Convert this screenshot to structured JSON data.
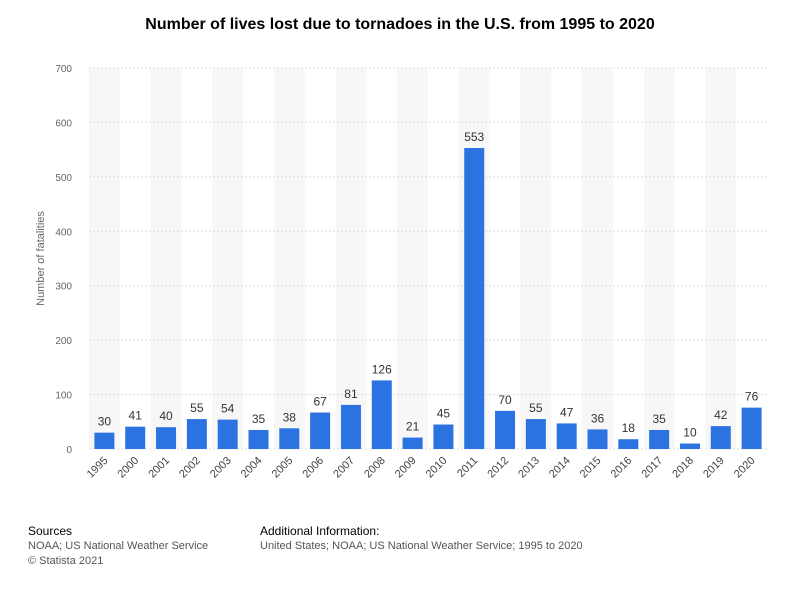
{
  "chart_data": {
    "type": "bar",
    "title": "Number of lives lost due to tornadoes in the U.S. from 1995 to 2020",
    "xlabel": "",
    "ylabel": "Number of fatalities",
    "ylim": [
      0,
      700
    ],
    "yticks": [
      0,
      100,
      200,
      300,
      400,
      500,
      600,
      700
    ],
    "categories": [
      "1995",
      "2000",
      "2001",
      "2002",
      "2003",
      "2004",
      "2005",
      "2006",
      "2007",
      "2008",
      "2009",
      "2010",
      "2011",
      "2012",
      "2013",
      "2014",
      "2015",
      "2016",
      "2017",
      "2018",
      "2019",
      "2020"
    ],
    "values": [
      30,
      41,
      40,
      55,
      54,
      35,
      38,
      67,
      81,
      126,
      21,
      45,
      553,
      70,
      55,
      47,
      36,
      18,
      35,
      10,
      42,
      76
    ],
    "bar_color": "#2b73e1",
    "grid": true,
    "data_labels": true
  },
  "footer": {
    "sources_heading": "Sources",
    "sources_line1": "NOAA; US National Weather Service",
    "sources_line2": "© Statista 2021",
    "additional_heading": "Additional Information:",
    "additional_line1": "United States; NOAA; US National Weather Service; 1995 to 2020"
  }
}
